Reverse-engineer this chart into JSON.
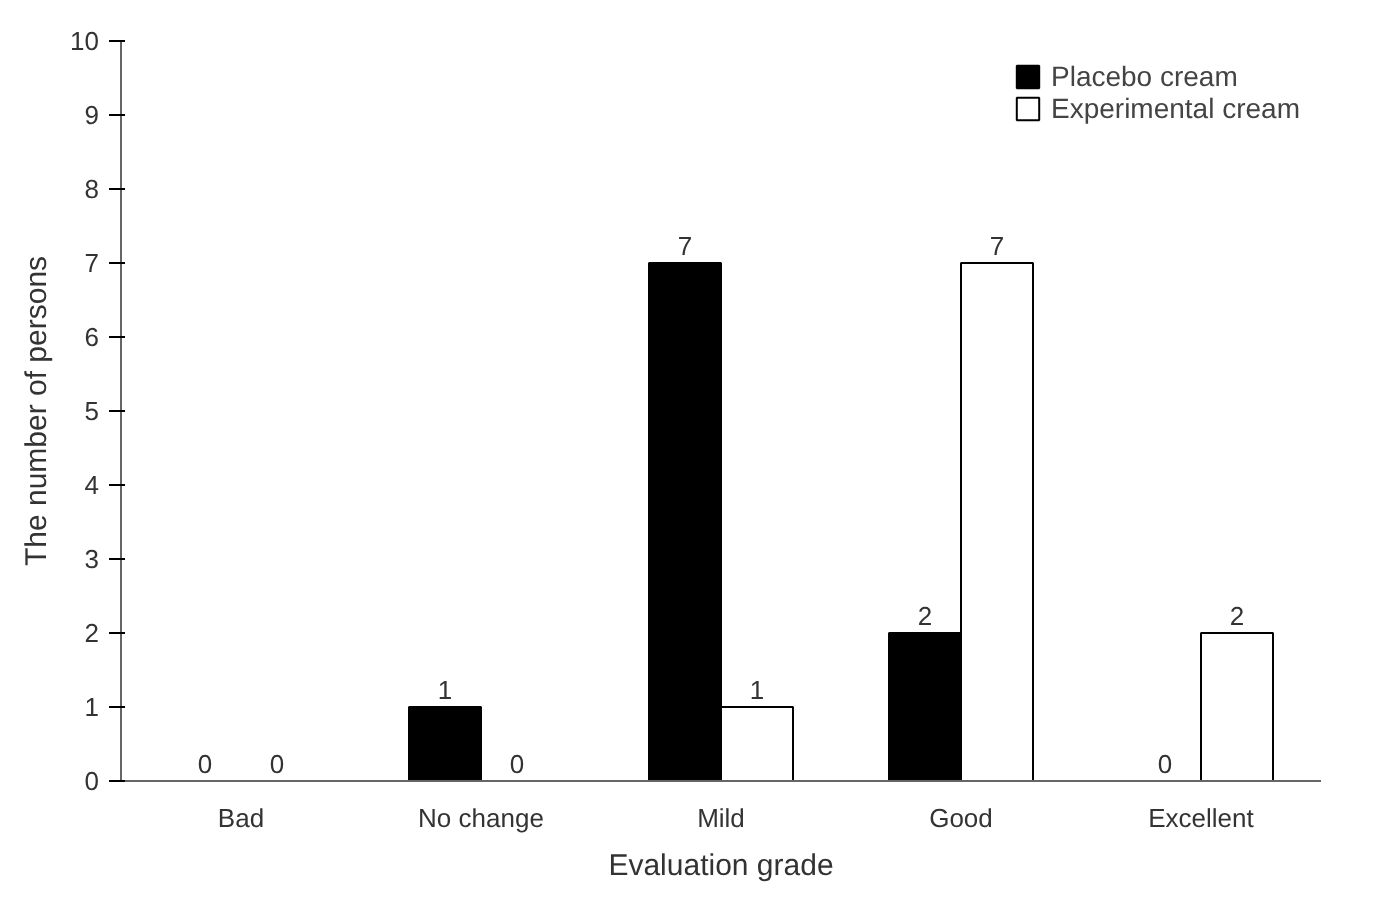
{
  "chart_data": {
    "type": "bar",
    "xlabel": "Evaluation grade",
    "ylabel": "The number of persons",
    "categories": [
      "Bad",
      "No change",
      "Mild",
      "Good",
      "Excellent"
    ],
    "series": [
      {
        "name": "Placebo cream",
        "color": "#000000",
        "values": [
          0,
          1,
          7,
          2,
          0
        ]
      },
      {
        "name": "Experimental cream",
        "color": "#ffffff",
        "values": [
          0,
          0,
          1,
          7,
          2
        ]
      }
    ],
    "ylim": [
      0,
      10
    ],
    "yticks": [
      0,
      1,
      2,
      3,
      4,
      5,
      6,
      7,
      8,
      9,
      10
    ],
    "data_labels": true,
    "legend": "top right",
    "grid": false
  }
}
